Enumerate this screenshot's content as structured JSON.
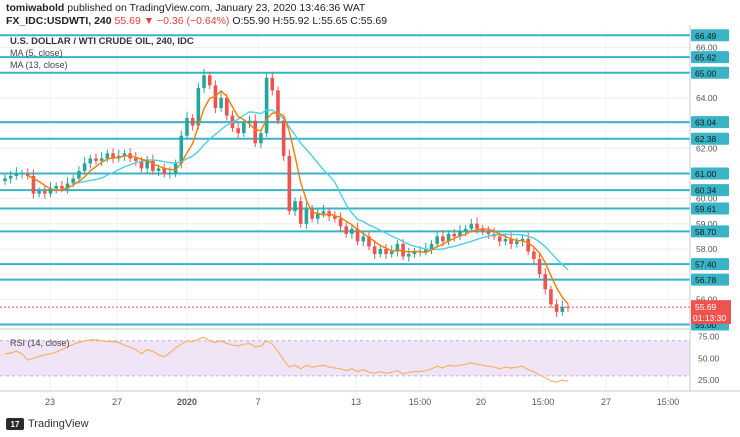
{
  "header": {
    "author": "tomiwabold",
    "published_text": "published on TradingView.com, January 23, 2020 13:46:36 WAT",
    "symbol": "FX_IDC:USDWTI, 240",
    "change": "55.69 ▼ −0.36 (−0.64%)",
    "ohlc": "O:55.90 H:55.92 L:55.65 C:55.69"
  },
  "footer": {
    "brand": "TradingView",
    "logo_text": "17"
  },
  "colors": {
    "up": "#26a69a",
    "down": "#ef5350",
    "ma5": "#f57c00",
    "ma13": "#4dd0e1",
    "hline": "#39b3c6",
    "rsi": "#f6b26b",
    "rsi_band": "#f0e4f7"
  },
  "chart_data": [
    {
      "type": "candlestick",
      "title": "U.S. DOLLAR / WTI CRUDE OIL, 240, IDC",
      "legend": [
        "MA (5, close)",
        "MA (13, close)"
      ],
      "legend_position": "top-left",
      "y_axis_side": "right",
      "ylim": [
        54.9,
        66.7
      ],
      "y_ticks": [
        55.0,
        56.0,
        57.0,
        58.0,
        59.0,
        60.0,
        61.0,
        62.0,
        63.0,
        64.0,
        65.0,
        66.0
      ],
      "x_ticks": [
        "23",
        "27",
        "2020",
        "7",
        "13",
        "15:00",
        "20",
        "15:00",
        "27",
        "15:00"
      ],
      "horizontal_levels": [
        66.49,
        65.62,
        65.0,
        63.04,
        62.38,
        61.0,
        60.34,
        59.61,
        58.7,
        57.4,
        56.78,
        55.0
      ],
      "level_labels": [
        "66.49",
        "65.62",
        "65.00",
        "63.04",
        "62.38",
        "61.00",
        "60.34",
        "59.61",
        "58.70",
        "57.40",
        "56.78",
        "55.00"
      ],
      "tick_labels": [
        "66.00",
        "64.00",
        "62.00",
        "60.00",
        "59.00",
        "58.00",
        "56.00"
      ],
      "last_price": 55.69,
      "last_price_label": "55.69",
      "countdown_label": "01:13:30",
      "close_series": [
        60.8,
        60.9,
        61.0,
        61.0,
        60.9,
        60.2,
        60.3,
        60.2,
        60.4,
        60.5,
        60.4,
        60.6,
        60.8,
        61.1,
        61.4,
        61.6,
        61.5,
        61.6,
        61.8,
        61.6,
        61.7,
        61.8,
        61.6,
        61.5,
        61.2,
        61.5,
        61.1,
        61.2,
        61.0,
        61.0,
        61.4,
        62.5,
        63.2,
        62.9,
        64.4,
        64.9,
        64.5,
        63.6,
        64.0,
        63.3,
        62.8,
        62.6,
        63.0,
        63.1,
        62.2,
        62.6,
        64.8,
        64.3,
        63.1,
        61.7,
        59.5,
        59.9,
        59.0,
        59.6,
        59.2,
        59.4,
        59.5,
        59.3,
        59.2,
        58.9,
        58.6,
        58.8,
        58.3,
        58.5,
        58.1,
        57.8,
        58.0,
        57.8,
        57.9,
        58.2,
        57.7,
        57.8,
        57.9,
        57.9,
        58.0,
        58.2,
        58.5,
        58.3,
        58.6,
        58.5,
        58.7,
        58.8,
        59.0,
        58.8,
        58.7,
        58.6,
        58.5,
        58.3,
        58.4,
        58.2,
        58.3,
        58.4,
        57.9,
        57.6,
        57.0,
        56.4,
        55.8,
        55.5,
        55.7,
        55.69
      ],
      "ma5_start_index": 4,
      "ma13_start_index": 12
    },
    {
      "type": "line",
      "title": "RSI (14, close)",
      "ylim": [
        15,
        80
      ],
      "y_ticks": [
        25,
        50,
        75
      ],
      "y_tick_labels": [
        "25.00",
        "50.00",
        "75.00"
      ],
      "band": [
        30,
        70
      ],
      "values": [
        55,
        56,
        58,
        55,
        48,
        50,
        52,
        54,
        55,
        57,
        60,
        63,
        66,
        68,
        70,
        71,
        71,
        70,
        69,
        69,
        68,
        65,
        63,
        60,
        55,
        60,
        58,
        54,
        52,
        56,
        62,
        66,
        70,
        69,
        72,
        74,
        70,
        68,
        70,
        67,
        65,
        64,
        66,
        67,
        63,
        64,
        70,
        66,
        58,
        48,
        40,
        42,
        38,
        42,
        40,
        41,
        42,
        40,
        39,
        38,
        36,
        38,
        35,
        37,
        34,
        33,
        35,
        33,
        34,
        36,
        32,
        34,
        35,
        35,
        36,
        38,
        41,
        39,
        42,
        41,
        42,
        43,
        45,
        43,
        42,
        41,
        40,
        38,
        40,
        39,
        40,
        41,
        37,
        35,
        31,
        28,
        24,
        23,
        25,
        24
      ]
    }
  ]
}
